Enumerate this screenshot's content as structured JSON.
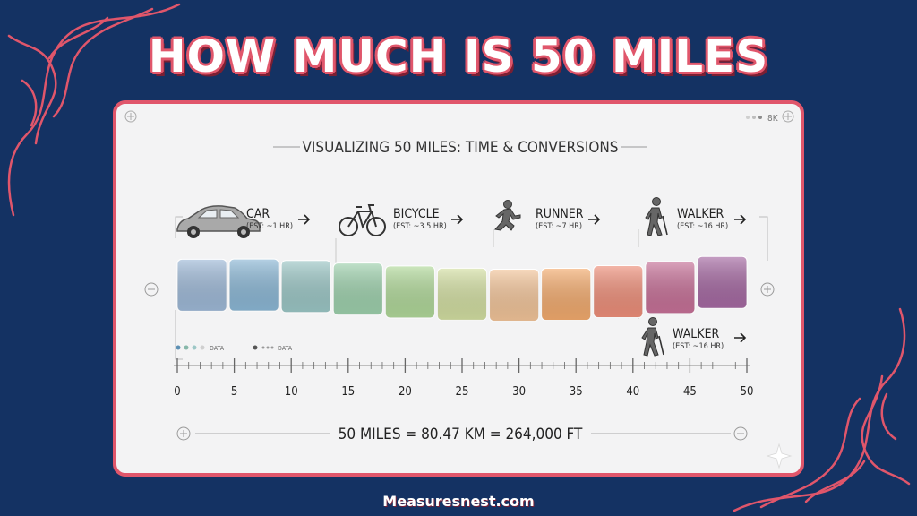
{
  "title": "HOW MUCH IS 50 MILES",
  "subtitle": "VISUALIZING 50 MILES: TIME & CONVERSIONS",
  "corner_badge": "8K",
  "colors": {
    "background": "#143263",
    "accent": "#e0566b",
    "card": "#f3f3f4"
  },
  "modes": [
    {
      "icon": "car-icon",
      "name": "CAR",
      "estimate": "(EST: ~1 HR)"
    },
    {
      "icon": "bicycle-icon",
      "name": "BICYCLE",
      "estimate": "(EST: ~3.5 HR)"
    },
    {
      "icon": "runner-icon",
      "name": "RUNNER",
      "estimate": "(EST: ~7 HR)"
    },
    {
      "icon": "walker-icon",
      "name": "WALKER",
      "estimate": "(EST: ~16 HR)"
    },
    {
      "icon": "walker-icon",
      "name": "WALKER",
      "estimate": "(EST: ~16 HR)"
    }
  ],
  "data_labels": [
    "DATA",
    "DATA"
  ],
  "scale": {
    "ticks": [
      "0",
      "5",
      "10",
      "15",
      "20",
      "25",
      "30",
      "35",
      "40",
      "45",
      "50"
    ],
    "min": 0,
    "max": 50,
    "minor_step": 1,
    "major_step": 5
  },
  "band_colors": [
    "#9fbad8",
    "#8cb8d6",
    "#9cc7c6",
    "#9ed1ad",
    "#b1d99a",
    "#d3dfa2",
    "#f3c59a",
    "#f3ab6e",
    "#ee8f7a",
    "#c77198",
    "#a66aa3"
  ],
  "conversion": "50 MILES = 80.47 KM = 264,000 FT",
  "site": "Measuresnest.com"
}
